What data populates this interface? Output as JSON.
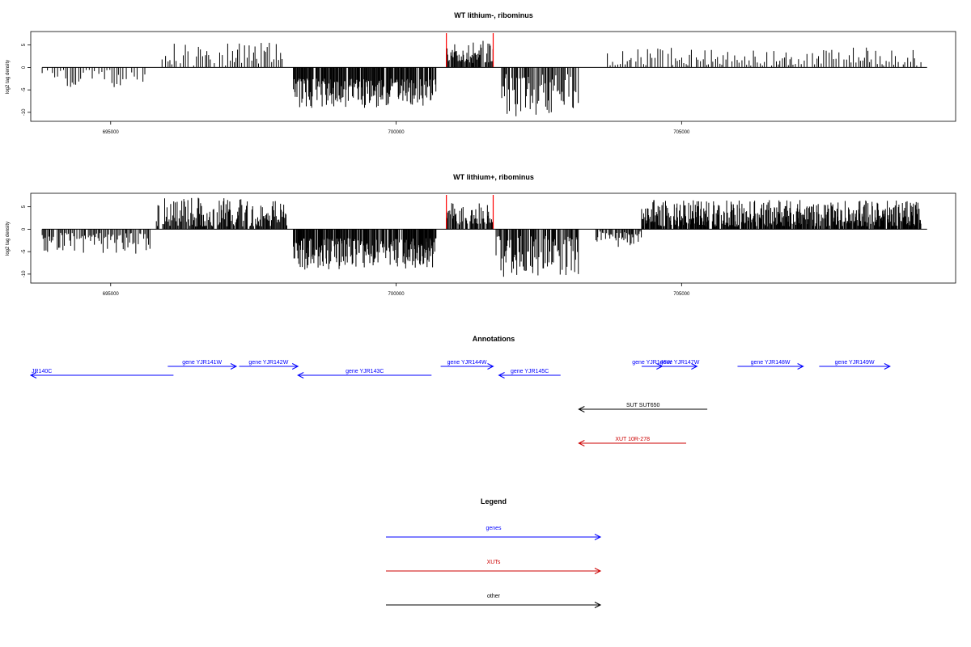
{
  "chart_data": [
    {
      "type": "bar",
      "title": "WT lithium-, ribominus",
      "ylabel": "log2 tag density",
      "xlim": [
        693600,
        709800
      ],
      "ylim": [
        -12,
        8
      ],
      "x_ticks": [
        695000,
        700000,
        705000
      ],
      "x_tick_labels": [
        "695000",
        "700000",
        "705000"
      ],
      "y_ticks": [
        -10,
        -5,
        0,
        5
      ],
      "y_tick_labels": [
        "-10",
        "-5",
        "0",
        "5"
      ],
      "markers": {
        "color": "#ff0000",
        "x": [
          700880,
          701700
        ],
        "label": ""
      },
      "segments": [
        {
          "start": 693800,
          "end": 695700,
          "step": 45,
          "min": 0.5,
          "max": 4.5,
          "sign": -1,
          "seed": 11
        },
        {
          "start": 695900,
          "end": 698100,
          "step": 40,
          "min": 0.4,
          "max": 5.5,
          "sign": 1,
          "seed": 12
        },
        {
          "start": 698200,
          "end": 700700,
          "step": 12,
          "min": 2.5,
          "max": 9.0,
          "sign": -1,
          "seed": 13
        },
        {
          "start": 700880,
          "end": 701700,
          "step": 14,
          "min": 1.0,
          "max": 6.0,
          "sign": 1,
          "seed": 14
        },
        {
          "start": 701850,
          "end": 703200,
          "step": 18,
          "min": 1.5,
          "max": 11.0,
          "sign": -1,
          "seed": 15
        },
        {
          "start": 703700,
          "end": 709200,
          "step": 40,
          "min": 0.4,
          "max": 4.5,
          "sign": 1,
          "seed": 16
        }
      ]
    },
    {
      "type": "bar",
      "title": "WT lithium+, ribominus",
      "ylabel": "log2 tag density",
      "xlim": [
        693600,
        709800
      ],
      "ylim": [
        -12,
        8
      ],
      "x_ticks": [
        695000,
        700000,
        705000
      ],
      "x_tick_labels": [
        "695000",
        "700000",
        "705000"
      ],
      "y_ticks": [
        -10,
        -5,
        0,
        5
      ],
      "y_tick_labels": [
        "-10",
        "-5",
        "0",
        "5"
      ],
      "markers": {
        "color": "#ff0000",
        "x": [
          700880,
          701700
        ],
        "label": ""
      },
      "segments": [
        {
          "start": 693800,
          "end": 695700,
          "step": 22,
          "min": 0.8,
          "max": 5.5,
          "sign": -1,
          "seed": 21
        },
        {
          "start": 695800,
          "end": 698100,
          "step": 14,
          "min": 0.6,
          "max": 7.0,
          "sign": 1,
          "seed": 22
        },
        {
          "start": 698200,
          "end": 700700,
          "step": 10,
          "min": 2.0,
          "max": 9.0,
          "sign": -1,
          "seed": 23
        },
        {
          "start": 700880,
          "end": 701700,
          "step": 12,
          "min": 1.0,
          "max": 6.0,
          "sign": 1,
          "seed": 24
        },
        {
          "start": 701750,
          "end": 703200,
          "step": 14,
          "min": 1.5,
          "max": 11.0,
          "sign": -1,
          "seed": 25
        },
        {
          "start": 703500,
          "end": 704300,
          "step": 18,
          "min": 0.5,
          "max": 4.0,
          "sign": -1,
          "seed": 26
        },
        {
          "start": 704300,
          "end": 709200,
          "step": 10,
          "min": 0.6,
          "max": 6.5,
          "sign": 1,
          "seed": 27
        }
      ]
    }
  ],
  "annotations": {
    "title": "Annotations",
    "colors": {
      "gene": "#0000ff",
      "xut": "#cc0000",
      "other": "#000000"
    },
    "features": [
      {
        "label": "JR140C",
        "start": 693600,
        "end": 696100,
        "strand": "-",
        "row": 1,
        "type": "gene"
      },
      {
        "label": "gene YJR141W",
        "start": 696000,
        "end": 697200,
        "strand": "+",
        "row": 0,
        "type": "gene"
      },
      {
        "label": "gene YJR142W",
        "start": 697250,
        "end": 698280,
        "strand": "+",
        "row": 0,
        "type": "gene"
      },
      {
        "label": "gene YJR143C",
        "start": 698280,
        "end": 700620,
        "strand": "-",
        "row": 1,
        "type": "gene"
      },
      {
        "label": "gene YJR144W",
        "start": 700780,
        "end": 701700,
        "strand": "+",
        "row": 0,
        "type": "gene"
      },
      {
        "label": "gene YJR145C",
        "start": 701800,
        "end": 702880,
        "strand": "-",
        "row": 1,
        "type": "gene"
      },
      {
        "label": "gene YJR146W",
        "start": 704300,
        "end": 704660,
        "strand": "+",
        "row": 0,
        "type": "gene"
      },
      {
        "label": "gene YJR147W",
        "start": 704660,
        "end": 705270,
        "strand": "+",
        "row": 0,
        "type": "gene"
      },
      {
        "label": "gene YJR148W",
        "start": 705980,
        "end": 707130,
        "strand": "+",
        "row": 0,
        "type": "gene"
      },
      {
        "label": "gene YJR149W",
        "start": 707410,
        "end": 708650,
        "strand": "+",
        "row": 0,
        "type": "gene"
      },
      {
        "label": "SUT SUT650",
        "start": 703200,
        "end": 705450,
        "strand": "-",
        "row": 2,
        "type": "other"
      },
      {
        "label": "XUT 10R-278",
        "start": 703200,
        "end": 705080,
        "strand": "-",
        "row": 3,
        "type": "xut"
      }
    ]
  },
  "legend": {
    "title": "Legend",
    "items": [
      {
        "label": "genes",
        "color": "#0000ff"
      },
      {
        "label": "XUTs",
        "color": "#cc0000"
      },
      {
        "label": "other",
        "color": "#000000"
      }
    ]
  }
}
